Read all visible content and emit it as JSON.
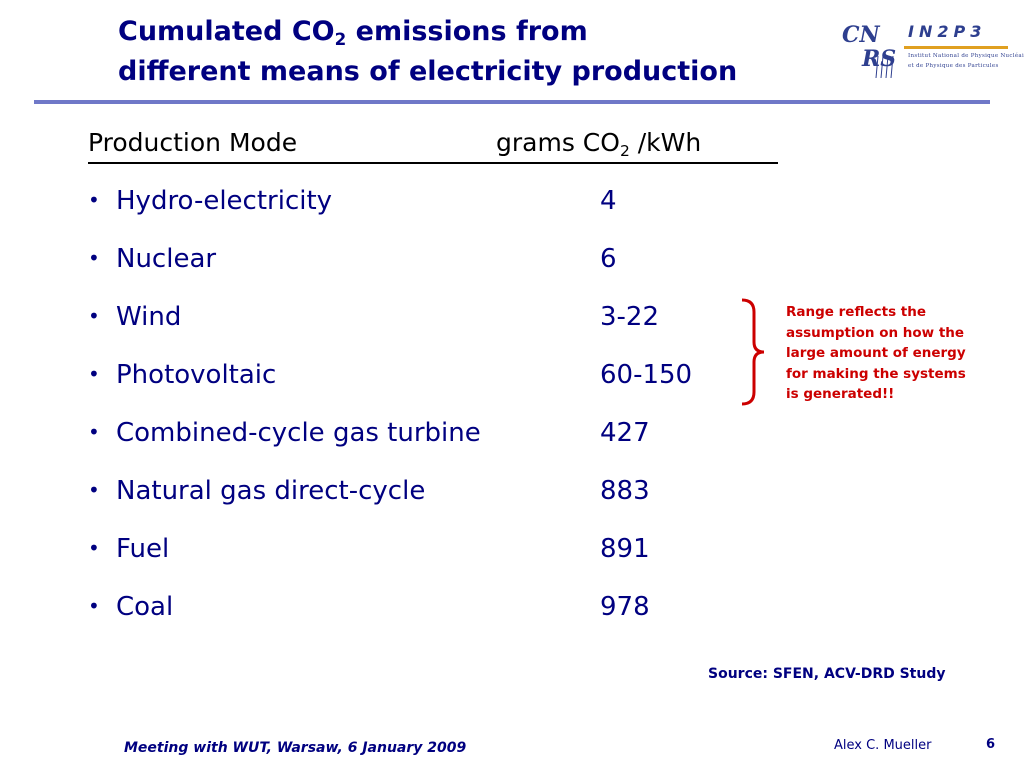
{
  "slide": {
    "title_line1_pre": "Cumulated CO",
    "title_line1_sub": "2",
    "title_line1_post": " emissions from",
    "title_line2": "different means of electricity production"
  },
  "logo": {
    "cnrs_part1": "CN",
    "cnrs_part2": "RS",
    "in2p3": "IN2P3",
    "subtitle_line1": "Institut National de Physique Nucléaire",
    "subtitle_line2": "et de Physique des Particules"
  },
  "table": {
    "header_mode": "Production Mode",
    "header_unit_pre": "grams CO",
    "header_unit_sub": "2",
    "header_unit_post": " /kWh",
    "rows": [
      {
        "bullet": "•",
        "mode": "Hydro-electricity",
        "value": "4"
      },
      {
        "bullet": "•",
        "mode": "Nuclear",
        "value": "6"
      },
      {
        "bullet": "•",
        "mode": "Wind",
        "value": "3-22"
      },
      {
        "bullet": "•",
        "mode": "Photovoltaic",
        "value": "60-150"
      },
      {
        "bullet": "•",
        "mode": "Combined-cycle gas turbine",
        "value": "427"
      },
      {
        "bullet": "•",
        "mode": "Natural gas direct-cycle",
        "value": "883"
      },
      {
        "bullet": "•",
        "mode": "Fuel",
        "value": "891"
      },
      {
        "bullet": "•",
        "mode": "Coal",
        "value": "978"
      }
    ]
  },
  "note": {
    "line1": "Range reflects the",
    "line2": "assumption on how the",
    "line3": "large amount of energy",
    "line4": "for making the systems",
    "line5": "is generated!!",
    "color": "#cc0000"
  },
  "source": "Source: SFEN, ACV-DRD Study",
  "footer": {
    "meeting": "Meeting with WUT, Warsaw, 6 January 2009",
    "author": "Alex C. Mueller",
    "page": "6"
  },
  "colors": {
    "text_primary": "#000080",
    "rule": "#6f78c8",
    "logo_blue": "#2e3f8f",
    "logo_gold": "#e0a020"
  }
}
